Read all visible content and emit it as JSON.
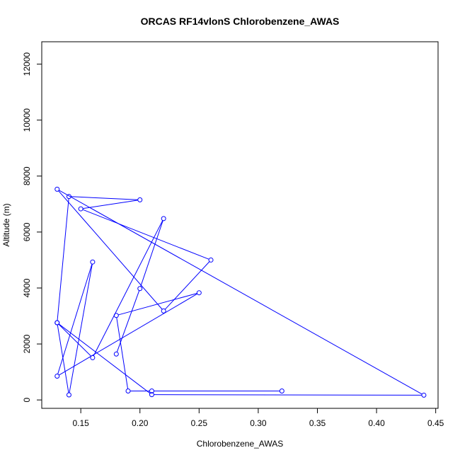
{
  "chart_data": {
    "type": "line",
    "title": "ORCAS RF14vlonS Chlorobenzene_AWAS",
    "xlabel": "Chlorobenzene_AWAS",
    "ylabel": "Altitude (m)",
    "xlim": [
      0.117,
      0.452
    ],
    "ylim": [
      -300,
      12800
    ],
    "x_ticks": [
      "0.15",
      "0.20",
      "0.25",
      "0.30",
      "0.35",
      "0.40",
      "0.45"
    ],
    "x_tick_values": [
      0.15,
      0.2,
      0.25,
      0.3,
      0.35,
      0.4,
      0.45
    ],
    "y_ticks": [
      "0",
      "2000",
      "4000",
      "6000",
      "8000",
      "10000",
      "12000"
    ],
    "y_tick_values": [
      0,
      2000,
      4000,
      6000,
      8000,
      10000,
      12000
    ],
    "grid": false,
    "marker": "open-circle",
    "color": "#0000ff",
    "series": [
      {
        "x": [
          0.32,
          0.21,
          0.19,
          0.18,
          0.25,
          0.13,
          0.16,
          0.14,
          0.13,
          0.14,
          0.2,
          0.15,
          0.26,
          0.22,
          0.13,
          0.44,
          0.21,
          0.13,
          0.16,
          0.22,
          0.2,
          0.18
        ],
        "y": [
          320,
          320,
          320,
          3020,
          3830,
          850,
          4930,
          180,
          2760,
          7270,
          7150,
          6830,
          5000,
          3180,
          7530,
          170,
          190,
          2760,
          1510,
          6480,
          3980,
          1640
        ]
      }
    ]
  }
}
